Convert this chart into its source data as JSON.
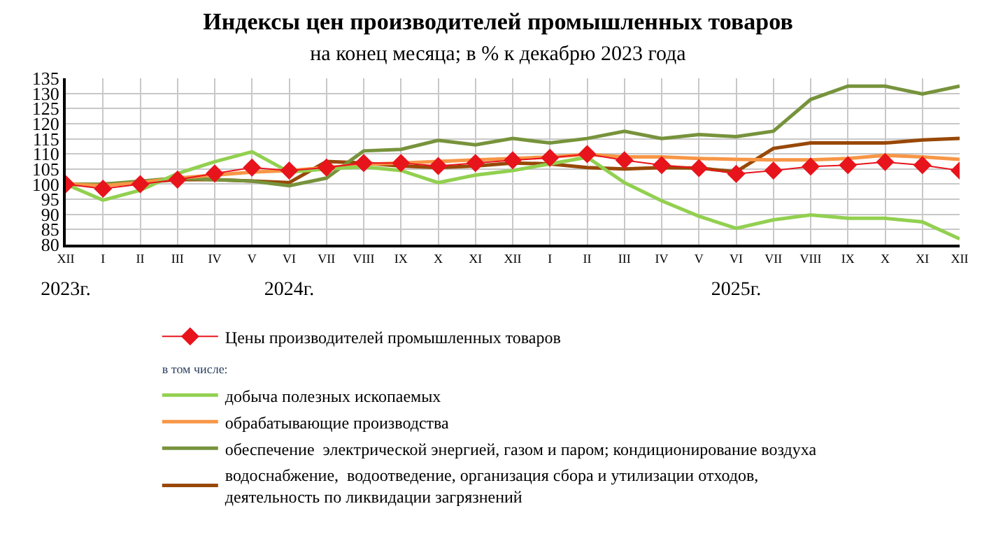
{
  "chart_data": {
    "type": "line",
    "title": "Индексы цен производителей промышленных товаров",
    "subtitle": "на конец месяца; в % к декабрю 2023 года",
    "categories": [
      "XII\n2023г.",
      "I",
      "II",
      "III",
      "IV",
      "V",
      "VI\n2024г.",
      "VII",
      "VIII",
      "IX",
      "X",
      "XI",
      "XII",
      "I",
      "II",
      "III",
      "IV",
      "V",
      "VI\n2025г.",
      "VII",
      "VIII",
      "IX",
      "X",
      "XI",
      "XII"
    ],
    "series": [
      {
        "name": "Цены производителей промышленных товаров",
        "color": "#e8141c",
        "marker": "diamond",
        "values": [
          100,
          98.5,
          100,
          101.5,
          103.5,
          105.5,
          104.5,
          105.5,
          107,
          107,
          106,
          107,
          107.9,
          108.7,
          109.9,
          107.9,
          106.3,
          105.3,
          103.4,
          104.5,
          105.8,
          106.3,
          107.3,
          106.3,
          104.5
        ]
      },
      {
        "name": "добыча полезных ископаемых",
        "color": "#92d050",
        "values": [
          100,
          94.7,
          98,
          103.5,
          107.4,
          110.7,
          104,
          105,
          105.7,
          104.5,
          100.5,
          103,
          104.5,
          106.7,
          108.9,
          100.5,
          94.5,
          89.4,
          85.4,
          88.2,
          89.8,
          88.7,
          88.7,
          87.5,
          81.9
        ]
      },
      {
        "name": "обрабатывающие производства",
        "color": "#f79646",
        "values": [
          100,
          99.5,
          100.5,
          102,
          103,
          104,
          104.5,
          105.5,
          106.5,
          107,
          107.5,
          108,
          108.5,
          109,
          109.8,
          109,
          109,
          108.5,
          108.2,
          108,
          108,
          108.5,
          109.5,
          109,
          108.2
        ]
      },
      {
        "name": "обеспечение  электрической энергией, газом и паром; кондиционирование воздуха",
        "color": "#77933c",
        "values": [
          100,
          100,
          101,
          102,
          101.5,
          101,
          99.5,
          102,
          111,
          111.5,
          114.5,
          113,
          115.1,
          113.6,
          115.1,
          117.5,
          115.1,
          116.4,
          115.7,
          117.5,
          128,
          132.4,
          132.4,
          129.8,
          132.4
        ]
      },
      {
        "name": "водоснабжение,  водоотведение, организация сбора и утилизации отходов, деятельность по ликвидации загрязнений",
        "color": "#984807",
        "values": [
          100,
          100,
          100.5,
          101.5,
          101.5,
          101,
          100.5,
          107.5,
          107,
          106,
          105.5,
          106,
          107,
          106.7,
          105.5,
          105,
          105.5,
          105.3,
          104.1,
          111.8,
          113.6,
          113.6,
          113.6,
          114.6,
          115.1
        ]
      }
    ],
    "annotations": [
      "в том числе:"
    ],
    "ylim": [
      80,
      135
    ],
    "yticks": [
      80,
      85,
      90,
      95,
      100,
      105,
      110,
      115,
      120,
      125,
      130,
      135
    ],
    "grid": true,
    "legend": "bottom",
    "line_style": "solid"
  }
}
